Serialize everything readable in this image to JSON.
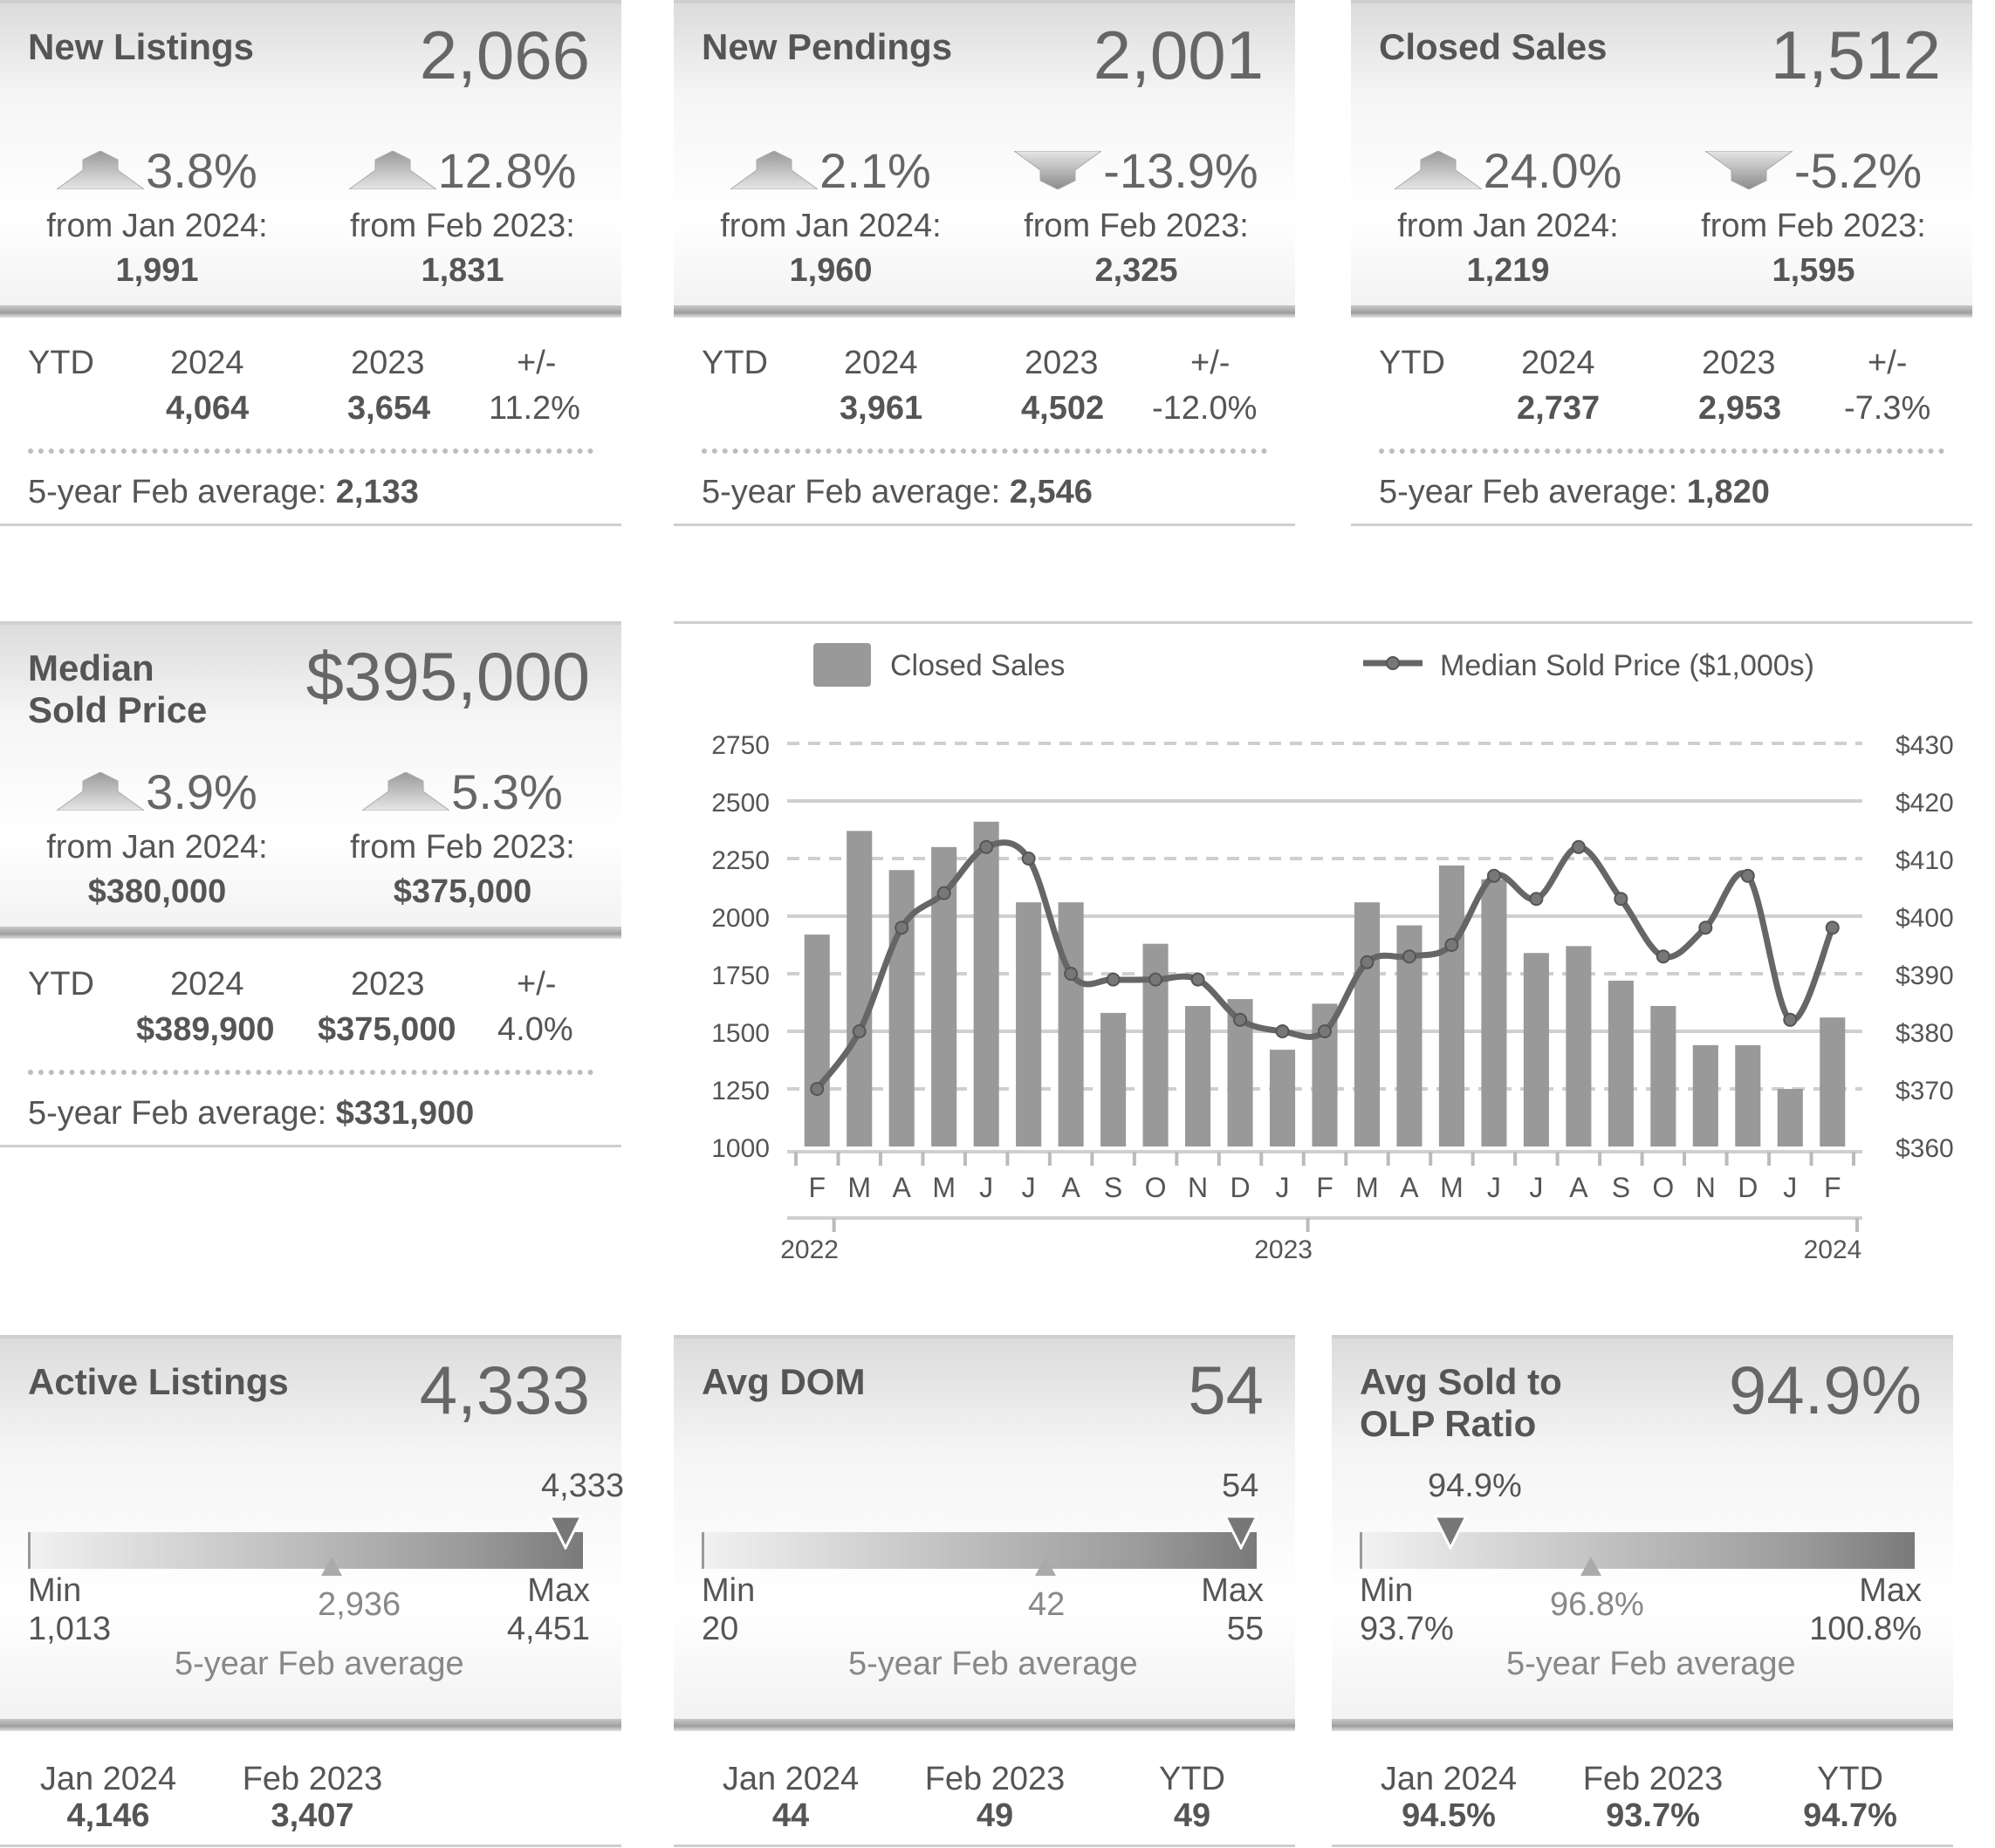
{
  "cards": [
    {
      "title": "New Listings",
      "value": "2,066",
      "mom": {
        "dir": "up",
        "pct": "3.8%",
        "label": "from Jan 2024:",
        "prev": "1,991"
      },
      "yoy": {
        "dir": "up",
        "pct": "12.8%",
        "label": "from Feb 2023:",
        "prev": "1,831"
      },
      "ytd": {
        "label": "YTD",
        "y1": "2024",
        "y2": "2023",
        "pm": "+/-",
        "v1": "4,064",
        "v2": "3,654",
        "diff": "11.2%"
      },
      "avg_label": "5-year Feb average:",
      "avg_value": "2,133"
    },
    {
      "title": "New Pendings",
      "value": "2,001",
      "mom": {
        "dir": "up",
        "pct": "2.1%",
        "label": "from Jan 2024:",
        "prev": "1,960"
      },
      "yoy": {
        "dir": "down",
        "pct": "-13.9%",
        "label": "from Feb 2023:",
        "prev": "2,325"
      },
      "ytd": {
        "label": "YTD",
        "y1": "2024",
        "y2": "2023",
        "pm": "+/-",
        "v1": "3,961",
        "v2": "4,502",
        "diff": "-12.0%"
      },
      "avg_label": "5-year Feb average:",
      "avg_value": "2,546"
    },
    {
      "title": "Closed Sales",
      "value": "1,512",
      "mom": {
        "dir": "up",
        "pct": "24.0%",
        "label": "from Jan 2024:",
        "prev": "1,219"
      },
      "yoy": {
        "dir": "down",
        "pct": "-5.2%",
        "label": "from Feb 2023:",
        "prev": "1,595"
      },
      "ytd": {
        "label": "YTD",
        "y1": "2024",
        "y2": "2023",
        "pm": "+/-",
        "v1": "2,737",
        "v2": "2,953",
        "diff": "-7.3%"
      },
      "avg_label": "5-year Feb average:",
      "avg_value": "1,820"
    },
    {
      "title_line1": "Median",
      "title_line2": "Sold Price",
      "value": "$395,000",
      "mom": {
        "dir": "up",
        "pct": "3.9%",
        "label": "from Jan 2024:",
        "prev": "$380,000"
      },
      "yoy": {
        "dir": "up",
        "pct": "5.3%",
        "label": "from Feb 2023:",
        "prev": "$375,000"
      },
      "ytd": {
        "label": "YTD",
        "y1": "2024",
        "y2": "2023",
        "pm": "+/-",
        "v1": "$389,900",
        "v2": "$375,000",
        "diff": "4.0%"
      },
      "avg_label": "5-year Feb average:",
      "avg_value": "$331,900"
    }
  ],
  "gauges": [
    {
      "title": "Active Listings",
      "value": "4,333",
      "current": "4,333",
      "min_label": "Min",
      "min": "1,013",
      "max_label": "Max",
      "max": "4,451",
      "avg": "2,936",
      "avg_label": "5-year Feb average",
      "current_frac": 0.965,
      "avg_frac": 0.55,
      "bottom": [
        {
          "label": "Jan 2024",
          "value": "4,146"
        },
        {
          "label": "Feb 2023",
          "value": "3,407"
        }
      ]
    },
    {
      "title": "Avg DOM",
      "value": "54",
      "current": "54",
      "min_label": "Min",
      "min": "20",
      "max_label": "Max",
      "max": "55",
      "avg": "42",
      "avg_label": "5-year Feb average",
      "current_frac": 0.97,
      "avg_frac": 0.63,
      "bottom": [
        {
          "label": "Jan 2024",
          "value": "44"
        },
        {
          "label": "Feb 2023",
          "value": "49"
        },
        {
          "label": "YTD",
          "value": "49"
        }
      ]
    },
    {
      "title_line1": "Avg Sold to",
      "title_line2": "OLP Ratio",
      "value": "94.9%",
      "current": "94.9%",
      "min_label": "Min",
      "min": "93.7%",
      "max_label": "Max",
      "max": "100.8%",
      "avg": "96.8%",
      "avg_label": "5-year Feb average",
      "current_frac": 0.17,
      "avg_frac": 0.42,
      "bottom": [
        {
          "label": "Jan 2024",
          "value": "94.5%"
        },
        {
          "label": "Feb 2023",
          "value": "93.7%"
        },
        {
          "label": "YTD",
          "value": "94.7%"
        }
      ]
    }
  ],
  "chart_data": {
    "type": "bar",
    "legend": {
      "bars": "Closed Sales",
      "line": "Median Sold Price ($1,000s)"
    },
    "categories": [
      "F",
      "M",
      "A",
      "M",
      "J",
      "J",
      "A",
      "S",
      "O",
      "N",
      "D",
      "J",
      "F",
      "M",
      "A",
      "M",
      "J",
      "J",
      "A",
      "S",
      "O",
      "N",
      "D",
      "J",
      "F"
    ],
    "year_labels": [
      {
        "label": "2022",
        "index": 0
      },
      {
        "label": "2023",
        "index": 12
      },
      {
        "label": "2024",
        "index": 24
      }
    ],
    "series": [
      {
        "name": "Closed Sales",
        "axis": "left",
        "type": "bar",
        "values": [
          1920,
          2370,
          2200,
          2300,
          2410,
          2060,
          2060,
          1580,
          1880,
          1610,
          1640,
          1420,
          1620,
          2060,
          1960,
          2220,
          2160,
          1840,
          1870,
          1720,
          1610,
          1440,
          1440,
          1250,
          1560
        ]
      },
      {
        "name": "Median Sold Price ($1,000s)",
        "axis": "right",
        "type": "line",
        "values": [
          370,
          380,
          398,
          404,
          412,
          410,
          390,
          389,
          389,
          389,
          382,
          380,
          380,
          392,
          393,
          395,
          407,
          403,
          412,
          403,
          393,
          398,
          407,
          382,
          398
        ]
      }
    ],
    "y_left": {
      "min": 1000,
      "max": 2750,
      "ticks": [
        "1000",
        "1250",
        "1500",
        "1750",
        "2000",
        "2250",
        "2500",
        "2750"
      ]
    },
    "y_right": {
      "min": 360,
      "max": 430,
      "ticks": [
        "$360",
        "$370",
        "$380",
        "$390",
        "$400",
        "$410",
        "$420",
        "$430"
      ]
    }
  }
}
